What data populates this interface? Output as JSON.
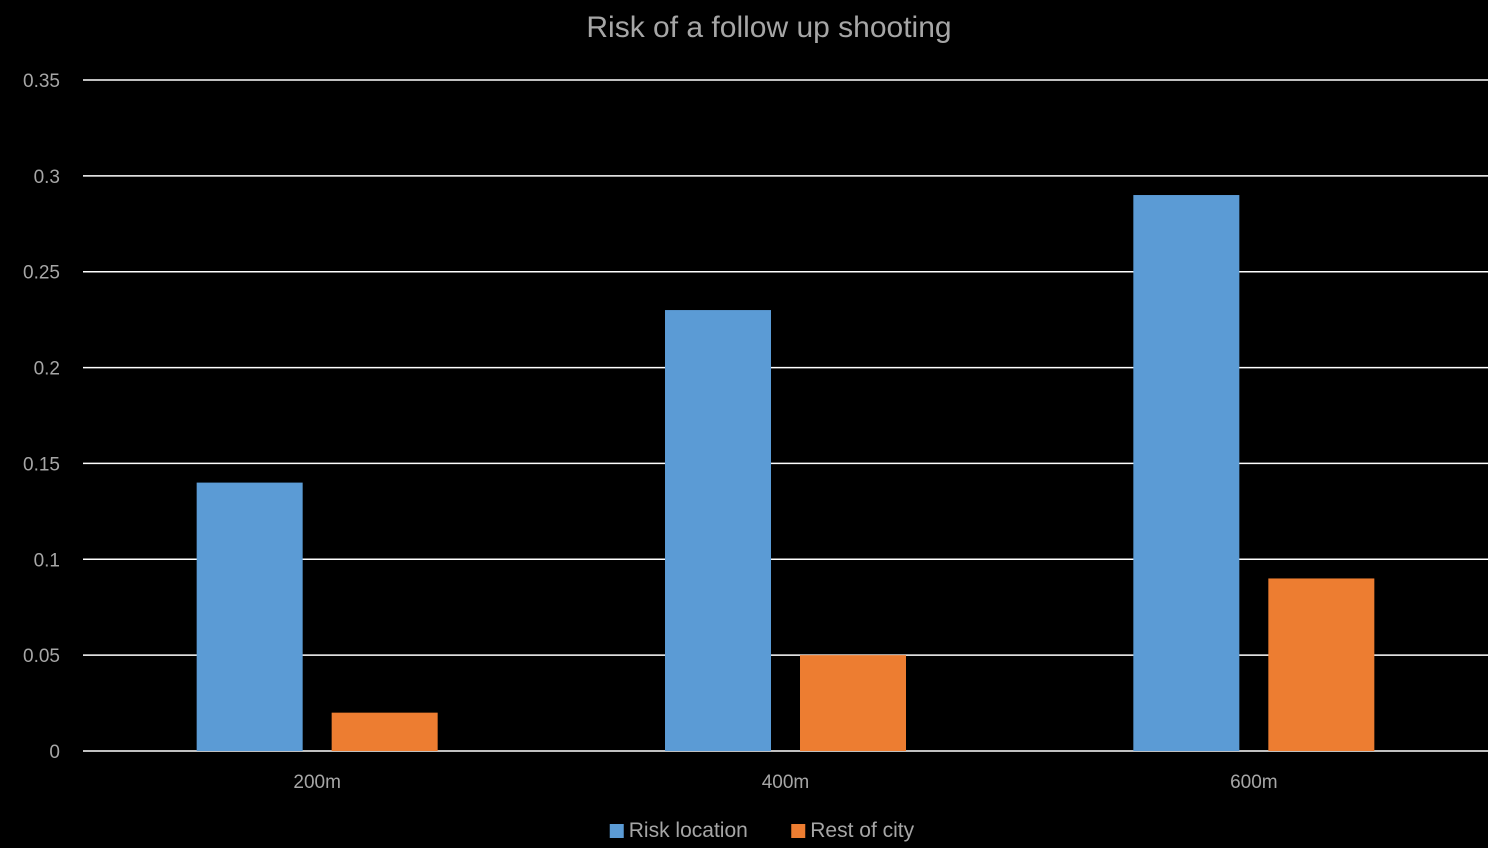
{
  "chart_data": {
    "type": "bar",
    "title": "Risk of a follow up shooting",
    "categories": [
      "200m",
      "400m",
      "600m"
    ],
    "series": [
      {
        "name": "Risk location",
        "values": [
          0.14,
          0.23,
          0.29
        ],
        "color": "#5B9BD5"
      },
      {
        "name": "Rest of city",
        "values": [
          0.02,
          0.05,
          0.09
        ],
        "color": "#ED7D31"
      }
    ],
    "ylim": [
      0,
      0.35
    ],
    "yticks": [
      "0",
      "0.05",
      "0.1",
      "0.15",
      "0.2",
      "0.25",
      "0.3",
      "0.35"
    ],
    "grid": true,
    "legend_position": "bottom",
    "colors": {
      "background": "#000000",
      "gridline": "#FFFFFF",
      "text": "#A6A6A6"
    }
  }
}
